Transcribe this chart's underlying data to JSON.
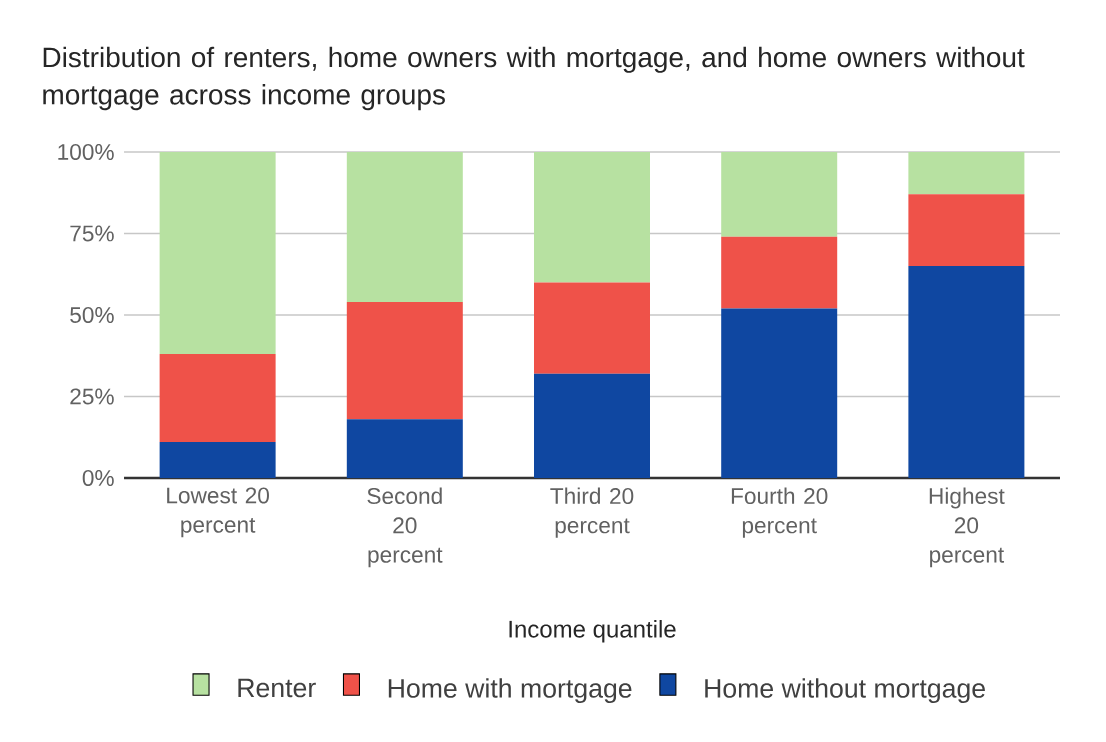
{
  "chart_data": {
    "type": "bar",
    "stacked": true,
    "title": "Distribution of renters, home owners with mortgage, and home owners without mortgage across income groups",
    "xlabel": "Income quantile",
    "categories": [
      "Lowest 20 percent",
      "Second 20 percent",
      "Third 20 percent",
      "Fourth 20 percent",
      "Highest 20 percent"
    ],
    "series": [
      {
        "name": "Home without mortgage",
        "color": "#0f47a1",
        "values": [
          11,
          18,
          32,
          52,
          65
        ]
      },
      {
        "name": "Home with mortgage",
        "color": "#ef5249",
        "values": [
          27,
          36,
          28,
          22,
          22
        ]
      },
      {
        "name": "Renter",
        "color": "#b7e1a1",
        "values": [
          62,
          46,
          40,
          26,
          13
        ]
      }
    ],
    "ylim": [
      0,
      100
    ],
    "yticks": [
      {
        "value": 0,
        "label": "0%"
      },
      {
        "value": 25,
        "label": "25%"
      },
      {
        "value": 50,
        "label": "50%"
      },
      {
        "value": 75,
        "label": "75%"
      },
      {
        "value": 100,
        "label": "100%"
      }
    ],
    "grid": "y",
    "legend": "bottom"
  }
}
